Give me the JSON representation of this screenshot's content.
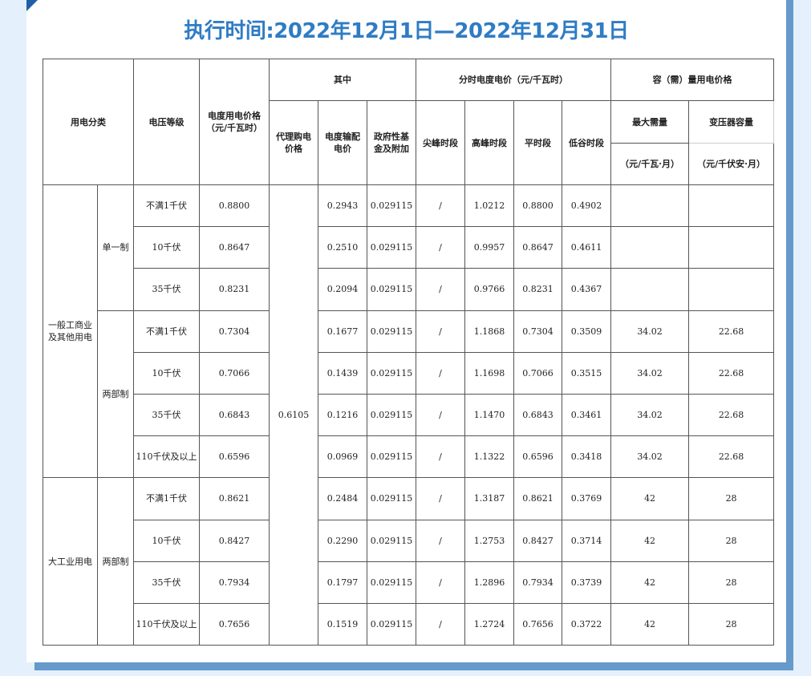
{
  "title": "执行时间:2022年12月1日—2022年12月31日",
  "header": {
    "category": "用电分类",
    "voltage": "电压等级",
    "price": "电度用电价格（元/千瓦时）",
    "of_which": "其中",
    "agent_price": "代理购电价格",
    "transmission": "电度输配电价",
    "gov_fund": "政府性基金及附加",
    "tou": "分时电度电价（元/千瓦时）",
    "peak_sharp": "尖峰时段",
    "peak": "高峰时段",
    "flat": "平时段",
    "valley": "低谷时段",
    "capacity": "容（需）量用电价格",
    "max_demand": "最大需量",
    "transformer": "变压器容量",
    "max_demand_unit": "（元/千瓦·月）",
    "transformer_unit": "（元/千伏安·月）"
  },
  "agent_price_value": "0.6105",
  "groups": [
    {
      "label": "一般工商业及其他用电",
      "subgroups": [
        {
          "label": "单一制",
          "rows": [
            {
              "voltage": "不满1千伏",
              "price": "0.8800",
              "trans": "0.2943",
              "fund": "0.029115",
              "sharp": "/",
              "peak": "1.0212",
              "flat": "0.8800",
              "valley": "0.4902",
              "demand": "",
              "transformer": ""
            },
            {
              "voltage": "10千伏",
              "price": "0.8647",
              "trans": "0.2510",
              "fund": "0.029115",
              "sharp": "/",
              "peak": "0.9957",
              "flat": "0.8647",
              "valley": "0.4611",
              "demand": "",
              "transformer": ""
            },
            {
              "voltage": "35千伏",
              "price": "0.8231",
              "trans": "0.2094",
              "fund": "0.029115",
              "sharp": "/",
              "peak": "0.9766",
              "flat": "0.8231",
              "valley": "0.4367",
              "demand": "",
              "transformer": ""
            }
          ]
        },
        {
          "label": "两部制",
          "rows": [
            {
              "voltage": "不满1千伏",
              "price": "0.7304",
              "trans": "0.1677",
              "fund": "0.029115",
              "sharp": "/",
              "peak": "1.1868",
              "flat": "0.7304",
              "valley": "0.3509",
              "demand": "34.02",
              "transformer": "22.68"
            },
            {
              "voltage": "10千伏",
              "price": "0.7066",
              "trans": "0.1439",
              "fund": "0.029115",
              "sharp": "/",
              "peak": "1.1698",
              "flat": "0.7066",
              "valley": "0.3515",
              "demand": "34.02",
              "transformer": "22.68"
            },
            {
              "voltage": "35千伏",
              "price": "0.6843",
              "trans": "0.1216",
              "fund": "0.029115",
              "sharp": "/",
              "peak": "1.1470",
              "flat": "0.6843",
              "valley": "0.3461",
              "demand": "34.02",
              "transformer": "22.68"
            },
            {
              "voltage": "110千伏及以上",
              "price": "0.6596",
              "trans": "0.0969",
              "fund": "0.029115",
              "sharp": "/",
              "peak": "1.1322",
              "flat": "0.6596",
              "valley": "0.3418",
              "demand": "34.02",
              "transformer": "22.68"
            }
          ]
        }
      ]
    },
    {
      "label": "大工业用电",
      "subgroups": [
        {
          "label": "两部制",
          "rows": [
            {
              "voltage": "不满1千伏",
              "price": "0.8621",
              "trans": "0.2484",
              "fund": "0.029115",
              "sharp": "/",
              "peak": "1.3187",
              "flat": "0.8621",
              "valley": "0.3769",
              "demand": "42",
              "transformer": "28"
            },
            {
              "voltage": "10千伏",
              "price": "0.8427",
              "trans": "0.2290",
              "fund": "0.029115",
              "sharp": "/",
              "peak": "1.2753",
              "flat": "0.8427",
              "valley": "0.3714",
              "demand": "42",
              "transformer": "28"
            },
            {
              "voltage": "35千伏",
              "price": "0.7934",
              "trans": "0.1797",
              "fund": "0.029115",
              "sharp": "/",
              "peak": "1.2896",
              "flat": "0.7934",
              "valley": "0.3739",
              "demand": "42",
              "transformer": "28"
            },
            {
              "voltage": "110千伏及以上",
              "price": "0.7656",
              "trans": "0.1519",
              "fund": "0.029115",
              "sharp": "/",
              "peak": "1.2724",
              "flat": "0.7656",
              "valley": "0.3722",
              "demand": "42",
              "transformer": "28"
            }
          ]
        }
      ]
    }
  ]
}
